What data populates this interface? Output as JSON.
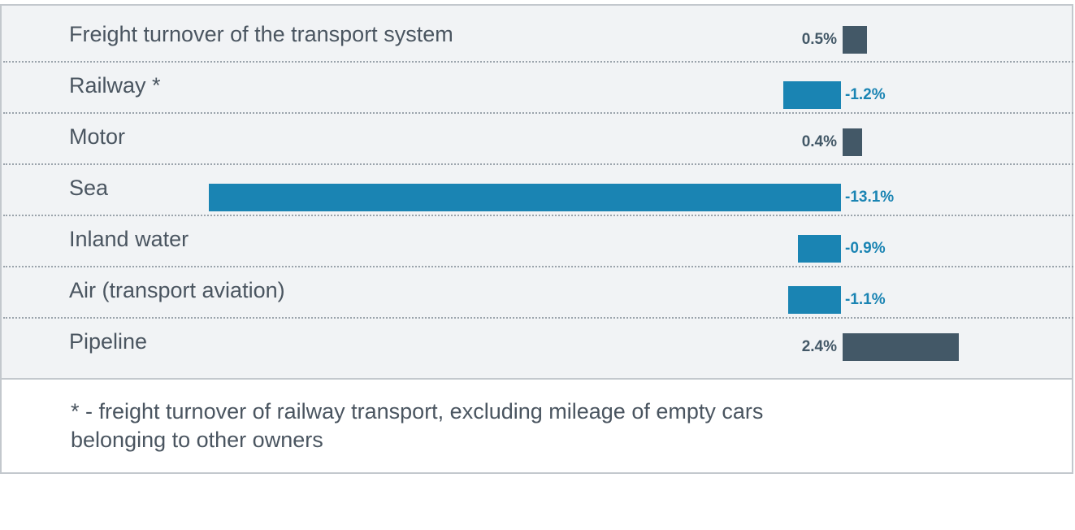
{
  "chart_data": {
    "type": "bar",
    "orientation": "horizontal",
    "categories": [
      "Freight turnover of the transport system",
      "Railway *",
      "Motor",
      "Sea",
      "Inland water",
      "Air (transport aviation)",
      "Pipeline"
    ],
    "values": [
      0.5,
      -1.2,
      0.4,
      -13.1,
      -0.9,
      -1.1,
      2.4
    ],
    "value_labels": [
      "0.5%",
      "-1.2%",
      "0.4%",
      "-13.1%",
      "-0.9%",
      "-1.1%",
      "2.4%"
    ],
    "colors": {
      "positive": "#435867",
      "negative": "#1a84b3"
    },
    "grid": false,
    "legend": "none"
  },
  "footnote": "* - freight turnover of railway transport, excluding mileage of empty cars belonging to other owners"
}
